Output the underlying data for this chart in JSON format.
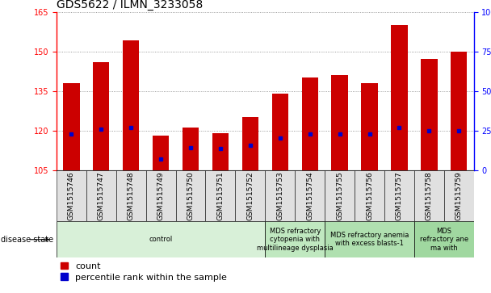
{
  "title": "GDS5622 / ILMN_3233058",
  "samples": [
    "GSM1515746",
    "GSM1515747",
    "GSM1515748",
    "GSM1515749",
    "GSM1515750",
    "GSM1515751",
    "GSM1515752",
    "GSM1515753",
    "GSM1515754",
    "GSM1515755",
    "GSM1515756",
    "GSM1515757",
    "GSM1515758",
    "GSM1515759"
  ],
  "counts": [
    138,
    146,
    154,
    118,
    121,
    119,
    125,
    134,
    140,
    141,
    138,
    160,
    147,
    150
  ],
  "percentile_values": [
    118.5,
    120.5,
    121,
    109,
    113.5,
    113,
    114.5,
    117,
    118.5,
    118.5,
    118.5,
    121,
    120,
    120
  ],
  "y_min": 105,
  "y_max": 165,
  "y_ticks_left": [
    105,
    120,
    135,
    150,
    165
  ],
  "y_ticks_right_vals": [
    0,
    25,
    50,
    75,
    100
  ],
  "y_ticks_right_labels": [
    "0",
    "25",
    "50",
    "75",
    "100%"
  ],
  "disease_groups": [
    {
      "label": "control",
      "start": 0,
      "end": 7,
      "color": "#d8f0d8"
    },
    {
      "label": "MDS refractory\ncytopenia with\nmultilineage dysplasia",
      "start": 7,
      "end": 9,
      "color": "#c0e8c0"
    },
    {
      "label": "MDS refractory anemia\nwith excess blasts-1",
      "start": 9,
      "end": 12,
      "color": "#b0e0b0"
    },
    {
      "label": "MDS\nrefractory ane\nma with",
      "start": 12,
      "end": 14,
      "color": "#a0d8a0"
    }
  ],
  "bar_color": "#cc0000",
  "dot_color": "#0000cc",
  "base_value": 105,
  "bar_width": 0.55,
  "title_fontsize": 10,
  "tick_fontsize": 7,
  "sample_fontsize": 6.5,
  "label_fontsize": 7,
  "legend_fontsize": 8,
  "disease_fontsize": 6
}
